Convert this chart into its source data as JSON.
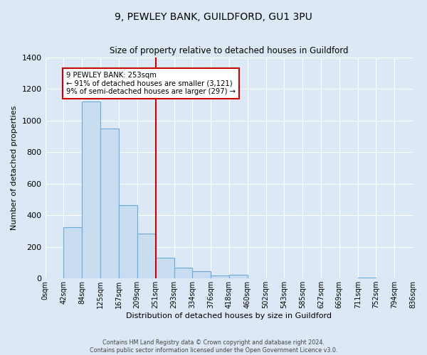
{
  "title": "9, PEWLEY BANK, GUILDFORD, GU1 3PU",
  "subtitle": "Size of property relative to detached houses in Guildford",
  "xlabel": "Distribution of detached houses by size in Guildford",
  "ylabel": "Number of detached properties",
  "bin_labels": [
    "0sqm",
    "42sqm",
    "84sqm",
    "125sqm",
    "167sqm",
    "209sqm",
    "251sqm",
    "293sqm",
    "334sqm",
    "376sqm",
    "418sqm",
    "460sqm",
    "502sqm",
    "543sqm",
    "585sqm",
    "627sqm",
    "669sqm",
    "711sqm",
    "752sqm",
    "794sqm",
    "836sqm"
  ],
  "bar_values": [
    0,
    325,
    1120,
    950,
    465,
    285,
    130,
    70,
    45,
    20,
    25,
    0,
    0,
    0,
    0,
    0,
    0,
    5,
    0,
    0,
    0
  ],
  "bar_color": "#c9ddf0",
  "bar_edge_color": "#6aabda",
  "vline_color": "#cc0000",
  "annotation_box_edge": "#cc0000",
  "ylim": [
    0,
    1400
  ],
  "yticks": [
    0,
    200,
    400,
    600,
    800,
    1000,
    1200,
    1400
  ],
  "footer_line1": "Contains HM Land Registry data © Crown copyright and database right 2024.",
  "footer_line2": "Contains public sector information licensed under the Open Government Licence v3.0.",
  "bg_color": "#dce8f5",
  "plot_bg_color": "#dce8f5",
  "property_line_label": "9 PEWLEY BANK: 253sqm",
  "annotation_line1": "← 91% of detached houses are smaller (3,121)",
  "annotation_line2": "9% of semi-detached houses are larger (297) →"
}
